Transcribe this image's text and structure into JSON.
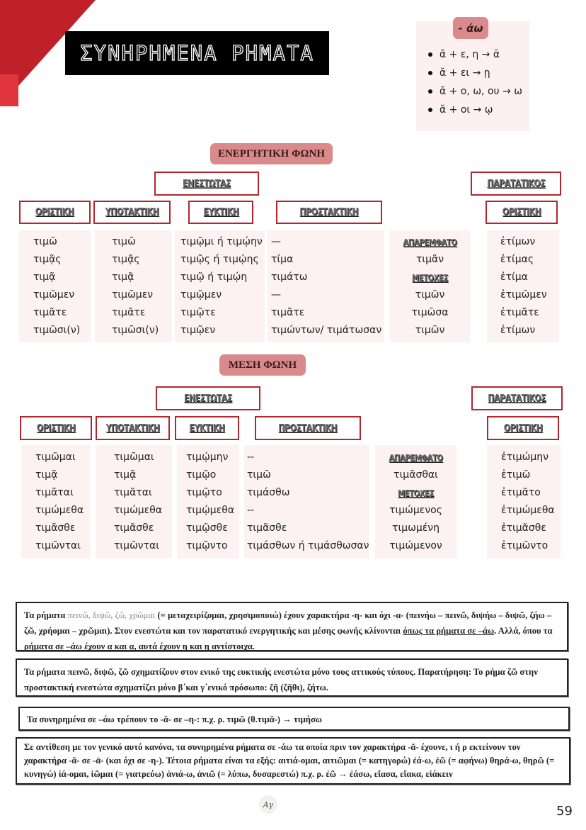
{
  "title": "ΣΥΝΗΡΗΜΕΝΑ ΡΗΜΑΤΑ",
  "rules": {
    "label": "- άω",
    "items": [
      "ᾰ + ε, η → ᾱ",
      "ᾰ + ει → ῃ",
      "ᾰ + ο, ω, ου → ω",
      "ᾰ + οι → ῳ"
    ]
  },
  "colors": {
    "accent_red": "#b3262e",
    "pill": "#d98a8a",
    "column_bg": "#fdf2f2"
  },
  "active": {
    "voice": "ΕΝΕΡΓΗΤΙΚΗ ΦΩΝΗ",
    "present": "ΕΝΕΣΤΩΤΑΣ",
    "imperfect": "ΠΑΡΑΤΑΤΙΚΟΣ",
    "moods": [
      "ΟΡΙΣΤΙΚΗ",
      "ΥΠΟΤΑΚΤΙΚΗ",
      "ΕΥΚΤΙΚΗ",
      "ΠΡΟΣΤΑΚΤΙΚΗ",
      "ΟΡΙΣΤΙΚΗ"
    ],
    "indicative": [
      "τιμῶ",
      "τιμᾷς",
      "τιμᾷ",
      "τιμῶμεν",
      "τιμᾶτε",
      "τιμῶσι(ν)"
    ],
    "subjunctive": [
      "τιμῶ",
      "τιμᾷς",
      "τιμᾷ",
      "τιμῶμεν",
      "τιμᾶτε",
      "τιμῶσι(ν)"
    ],
    "optative": [
      "τιμῷμι ή τιμῴην",
      "τιμῷς ή τιμῴης",
      "τιμῷ ή τιμῴη",
      "τιμῷμεν",
      "τιμῷτε",
      "τιμῷεν"
    ],
    "imperative": [
      "—",
      "τίμα",
      "τιμάτω",
      "—",
      "τιμᾶτε",
      "τιμώντων/ τιμάτωσαν"
    ],
    "infinitive_label": "ΑΠΑΡΕΜΦΑΤΟ",
    "infinitive": "τιμᾶν",
    "participles_label": "ΜΕΤΟΧΕΣ",
    "participles": [
      "τιμῶν",
      "τιμῶσα",
      "τιμῶν"
    ],
    "imperfect_indicative": [
      "ἐτίμων",
      "ἐτίμας",
      "ἐτίμα",
      "ἐτιμῶμεν",
      "ἐτιμᾶτε",
      "ἐτίμων"
    ]
  },
  "middle": {
    "voice": "ΜΕΣΗ ΦΩΝΗ",
    "present": "ΕΝΕΣΤΩΤΑΣ",
    "imperfect": "ΠΑΡΑΤΑΤΙΚΟΣ",
    "moods": [
      "ΟΡΙΣΤΙΚΗ",
      "ΥΠΟΤΑΚΤΙΚΗ",
      "ΕΥΚΤΙΚΗ",
      "ΠΡΟΣΤΑΚΤΙΚΗ",
      "ΟΡΙΣΤΙΚΗ"
    ],
    "indicative": [
      "τιμῶμαι",
      "τιμᾷ",
      "τιμᾶται",
      "τιμώμεθα",
      "τιμᾶσθε",
      "τιμῶνται"
    ],
    "subjunctive": [
      "τιμῶμαι",
      "τιμᾷ",
      "τιμᾶται",
      "τιμώμεθα",
      "τιμᾶσθε",
      "τιμῶνται"
    ],
    "optative": [
      "τιμῴμην",
      "τιμῷο",
      "τιμῷτο",
      "τιμῴμεθα",
      "τιμῷσθε",
      "τιμῷντο"
    ],
    "imperative": [
      "--",
      "τιμῶ",
      "τιμάσθω",
      "--",
      "τιμᾶσθε",
      "τιμάσθων ή τιμάσθωσαν"
    ],
    "infinitive_label": "ΑΠΑΡΕΜΦΑΤΟ",
    "infinitive": "τιμᾶσθαι",
    "participles_label": "ΜΕΤΟΧΕΣ",
    "participles": [
      "τιμώμενος",
      "τιμωμένη",
      "τιμώμενον"
    ],
    "imperfect_indicative": [
      "ἐτιμώμην",
      "ἐτιμῶ",
      "ἐτιμᾶτο",
      "ἐτιμώμεθα",
      "ἐτιμᾶσθε",
      "ἐτιμῶντο"
    ]
  },
  "notes": {
    "n1": {
      "a": "Τα ρήματα ",
      "b": "πεινῶ, διψῶ, ζῶ, χρῶμαι",
      "c": " (= μεταχειρίζομαι, χρησιμοποιώ) έχουν χαρακτήρα -η- και όχι -α- (πεινήω – πεινῶ, διψήω – διψῶ, ζήω – ζῶ, χρήομαι – χρῶμαι). Στον ενεστώτα και τον παρατατικό ενεργητικής και μέσης φωνής κλίνονται ",
      "d": "όπως τα ρήματα σε –άω",
      "e": ". Αλλά, όπου τα ρήματα σε –άω έχουν α και ᾳ, αυτά έχουν η και ῃ αντίστοιχα."
    },
    "n2": "Τα ρήματα πεινῶ, διψῶ, ζῶ σχηματίζουν στον ενικό της ευκτικής ενεστώτα μόνο τους αττικούς τύπους. Παρατήρηση: Το ρήμα ζῶ στην προστακτική ενεστώτα σχηματίζει μόνο β΄και γ΄ενικό πρόσωπο: ζῆ (ζῆθι), ζήτω.",
    "n3": "Τα συνηρημένα σε –άω τρέπουν το -ᾰ- σε –η-: π.χ. ρ. τιμῶ (θ.τιμᾰ-) → τιμήσω",
    "n4": "Σε αντίθεση με τον γενικό αυτό κανόνα, τα συνηρημένα ρήματα σε -άω τα οποία πριν τον χαρακτήρα -ᾰ- έχουνε, ι ή ρ εκτείνουν τον χαρακτήρα -ᾰ- σε -ᾱ- (και όχι σε -η-). Τέτοια ρήματα είναι τα εξής: αιτιά-ομαι, αιτιῶμαι (= κατηγορώ) ἐά-ω, ἐῶ (= αφήνω) θηρά-ω, θηρῶ (= κυνηγώ) ἰά-ομαι, ἰῶμαι (= γιατρεύω) ἀνιά-ω, ἀνιῶ (= λύπω, δυσαρεστώ) π.χ. ρ. ἐῶ → ἐάσω, εἴασα, εἴακα, εἰάκειν"
  },
  "logo": "Αγ",
  "page_number": "59"
}
